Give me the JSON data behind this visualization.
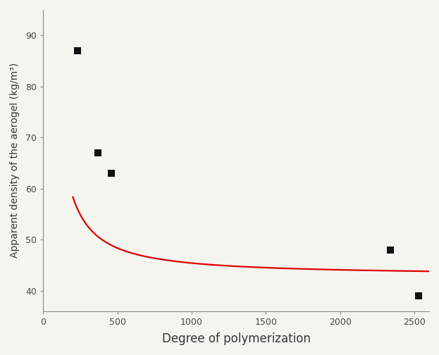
{
  "scatter_x": [
    230,
    370,
    460,
    2340,
    2530
  ],
  "scatter_y": [
    87,
    67,
    63,
    48,
    39
  ],
  "xlabel": "Degree of polymerization",
  "ylabel": "Apparent density of the aerogel (kg/m³)",
  "xlim": [
    0,
    2600
  ],
  "ylim": [
    36,
    95
  ],
  "yticks": [
    40,
    50,
    60,
    70,
    80,
    90
  ],
  "xticks": [
    0,
    500,
    1000,
    1500,
    2000,
    2500
  ],
  "line_color": "#dd0000",
  "marker_color": "#111111",
  "bg_color": "#f5f5f0",
  "marker_size": 7,
  "line_width": 1.6,
  "xlabel_fontsize": 12,
  "ylabel_fontsize": 10,
  "tick_fontsize": 9,
  "curve_x_start": 200,
  "curve_x_end": 2600,
  "fit_a": 6800,
  "fit_b": -1.15,
  "fit_c": 43.0
}
